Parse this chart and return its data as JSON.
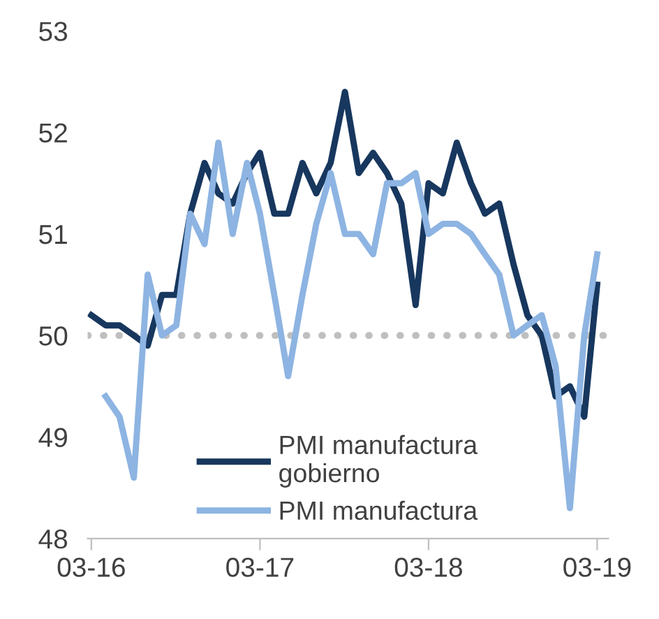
{
  "chart_data": {
    "type": "line",
    "x": [
      "2016-03",
      "2016-04",
      "2016-05",
      "2016-06",
      "2016-07",
      "2016-08",
      "2016-09",
      "2016-10",
      "2016-11",
      "2016-12",
      "2017-01",
      "2017-02",
      "2017-03",
      "2017-04",
      "2017-05",
      "2017-06",
      "2017-07",
      "2017-08",
      "2017-09",
      "2017-10",
      "2017-11",
      "2017-12",
      "2018-01",
      "2018-02",
      "2018-03",
      "2018-04",
      "2018-05",
      "2018-06",
      "2018-07",
      "2018-08",
      "2018-09",
      "2018-10",
      "2018-11",
      "2018-12",
      "2019-01",
      "2019-02",
      "2019-03"
    ],
    "series": [
      {
        "name": "PMI manufactura gobierno",
        "color": "#17375e",
        "values": [
          50.2,
          50.1,
          50.1,
          50.0,
          49.9,
          50.4,
          50.4,
          51.2,
          51.7,
          51.4,
          51.3,
          51.6,
          51.8,
          51.2,
          51.2,
          51.7,
          51.4,
          51.7,
          52.4,
          51.6,
          51.8,
          51.6,
          51.3,
          50.3,
          51.5,
          51.4,
          51.9,
          51.5,
          51.2,
          51.3,
          50.7,
          50.2,
          50.0,
          49.4,
          49.5,
          49.2,
          50.5
        ]
      },
      {
        "name": "PMI manufactura",
        "color": "#8db4e2",
        "values": [
          null,
          49.4,
          49.2,
          48.6,
          50.6,
          50.0,
          50.1,
          51.2,
          50.9,
          51.9,
          51.0,
          51.7,
          51.2,
          50.4,
          49.6,
          50.4,
          51.1,
          51.6,
          51.0,
          51.0,
          50.8,
          51.5,
          51.5,
          51.6,
          51.0,
          51.1,
          51.1,
          51.0,
          50.8,
          50.6,
          50.0,
          50.1,
          50.2,
          49.7,
          48.3,
          50.0,
          50.8
        ]
      }
    ],
    "xlim": [
      "2016-02-22",
      "2019-03-25"
    ],
    "xticks": [
      {
        "value": "2016-03",
        "label": "03-16"
      },
      {
        "value": "2017-03",
        "label": "03-17"
      },
      {
        "value": "2018-03",
        "label": "03-18"
      },
      {
        "value": "2019-03",
        "label": "03-19"
      }
    ],
    "ylim": [
      48,
      53
    ],
    "yticks": [
      48,
      49,
      50,
      51,
      52,
      53
    ],
    "ref_lines": [
      {
        "axis": "y",
        "value": 50,
        "color": "#bfbfbf",
        "line_style": "dotted"
      }
    ],
    "legend": "bottom left",
    "grid": false,
    "marker": "none",
    "line_style": "solid"
  }
}
